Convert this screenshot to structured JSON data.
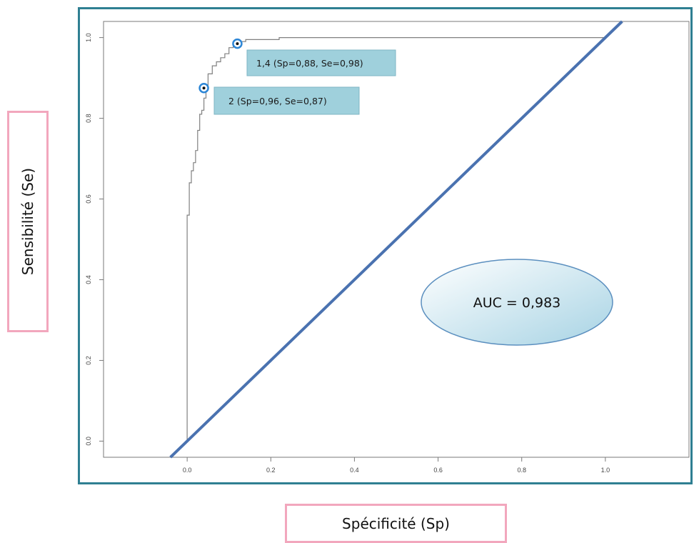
{
  "chart_data": {
    "type": "line",
    "title": "",
    "xlabel": "Spécificité (Sp)",
    "ylabel": "Sensibilité (Se)",
    "xlim": [
      -0.2,
      1.2
    ],
    "ylim": [
      -0.04,
      1.04
    ],
    "x_ticks": [
      "0.0",
      "0.2",
      "0.4",
      "0.6",
      "0.8",
      "1.0"
    ],
    "y_ticks": [
      "0.0",
      "0.2",
      "0.4",
      "0.6",
      "0.8",
      "1.0"
    ],
    "grid": false,
    "series": [
      {
        "color": "#808080",
        "x": [
          0.0,
          0.0,
          0.0,
          0.005,
          0.005,
          0.01,
          0.01,
          0.015,
          0.015,
          0.02,
          0.02,
          0.025,
          0.025,
          0.03,
          0.03,
          0.035,
          0.035,
          0.04,
          0.04,
          0.045,
          0.045,
          0.05,
          0.05,
          0.06,
          0.06,
          0.07,
          0.07,
          0.08,
          0.08,
          0.09,
          0.09,
          0.1,
          0.1,
          0.11,
          0.11,
          0.12,
          0.12,
          0.14,
          0.14,
          0.18,
          0.18,
          0.22,
          0.22,
          1.0,
          1.0
        ],
        "y": [
          0.0,
          0.56,
          0.56,
          0.56,
          0.64,
          0.64,
          0.67,
          0.67,
          0.69,
          0.69,
          0.72,
          0.72,
          0.77,
          0.77,
          0.81,
          0.81,
          0.82,
          0.82,
          0.85,
          0.85,
          0.87,
          0.87,
          0.91,
          0.91,
          0.93,
          0.93,
          0.94,
          0.94,
          0.95,
          0.95,
          0.96,
          0.96,
          0.975,
          0.975,
          0.98,
          0.98,
          0.99,
          0.99,
          0.995,
          0.995,
          0.995,
          0.995,
          1.0,
          1.0,
          1.0
        ]
      },
      {
        "color": "#4a72b0",
        "x": [
          -0.04,
          1.04
        ],
        "y": [
          -0.04,
          1.04
        ]
      }
    ],
    "points": [
      {
        "x": 0.12,
        "y": 0.985,
        "label": "1,4 (Sp=0,88, Se=0,98)"
      },
      {
        "x": 0.04,
        "y": 0.875,
        "label": "2 (Sp=0,96, Se=0,87)"
      }
    ],
    "annotation": {
      "text": "AUC = 0,983"
    },
    "colors": {
      "frame": "#2f7f92",
      "callout": "#9fd0dc",
      "ellipse_light": "#ffffff",
      "ellipse_dark": "#a7d3e4",
      "label_box": "#f2a7bd"
    }
  }
}
